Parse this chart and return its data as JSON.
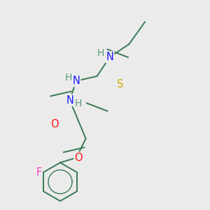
{
  "background_color": "#ebebeb",
  "bond_color": "#3a7a55",
  "atom_colors": {
    "N": "#1a1aff",
    "O": "#ff1515",
    "S": "#ccaa00",
    "F": "#ee44cc",
    "H": "#5a9a75",
    "C": "#3a7a55"
  },
  "figsize": [
    3.0,
    3.0
  ],
  "dpi": 100,
  "bond_lw": 1.4,
  "font_size": 10.5
}
